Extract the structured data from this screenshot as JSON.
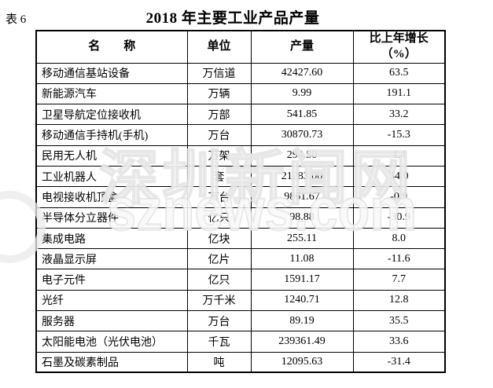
{
  "header": {
    "table_label": "表 6",
    "title": "2018 年主要工业产品产量"
  },
  "table": {
    "columns": {
      "name": "名　　称",
      "unit": "单位",
      "output": "产量",
      "growth_line1": "比上年增长",
      "growth_line2": "（%）"
    },
    "rows": [
      {
        "name": "移动通信基站设备",
        "unit": "万信道",
        "output": "42427.60",
        "growth": "63.5"
      },
      {
        "name": "新能源汽车",
        "unit": "万辆",
        "output": "9.99",
        "growth": "191.1"
      },
      {
        "name": "卫星导航定位接收机",
        "unit": "万部",
        "output": "541.85",
        "growth": "33.2"
      },
      {
        "name": "移动通信手持机(手机)",
        "unit": "万台",
        "output": "30870.73",
        "growth": "-15.3"
      },
      {
        "name": "民用无人机",
        "unit": "万架",
        "output": "294.50",
        "growth": "4.4"
      },
      {
        "name": "工业机器人",
        "unit": "套",
        "output": "21283.00",
        "growth": "34.0"
      },
      {
        "name": "电视接收机顶盒",
        "unit": "万台",
        "output": "9861.67",
        "growth": "-0.9"
      },
      {
        "name": "半导体分立器件",
        "unit": "亿只",
        "output": "98.88",
        "growth": "-30.9"
      },
      {
        "name": "集成电路",
        "unit": "亿块",
        "output": "255.11",
        "growth": "8.0"
      },
      {
        "name": "液晶显示屏",
        "unit": "亿片",
        "output": "11.08",
        "growth": "-11.6"
      },
      {
        "name": "电子元件",
        "unit": "亿只",
        "output": "1591.17",
        "growth": "7.7"
      },
      {
        "name": "光纤",
        "unit": "万千米",
        "output": "1240.71",
        "growth": "12.8"
      },
      {
        "name": "服务器",
        "unit": "万台",
        "output": "89.19",
        "growth": "35.5"
      },
      {
        "name": "太阳能电池（光伏电池）",
        "unit": "千瓦",
        "output": "239361.49",
        "growth": "33.6"
      },
      {
        "name": "石墨及碳素制品",
        "unit": "吨",
        "output": "12095.63",
        "growth": "-31.4"
      }
    ]
  },
  "watermark": {
    "line1": "深圳新闻网",
    "line2": "sznews.com"
  },
  "colors": {
    "text": "#000000",
    "border": "#000000",
    "background": "#ffffff",
    "watermark": "#e9e9e9"
  }
}
